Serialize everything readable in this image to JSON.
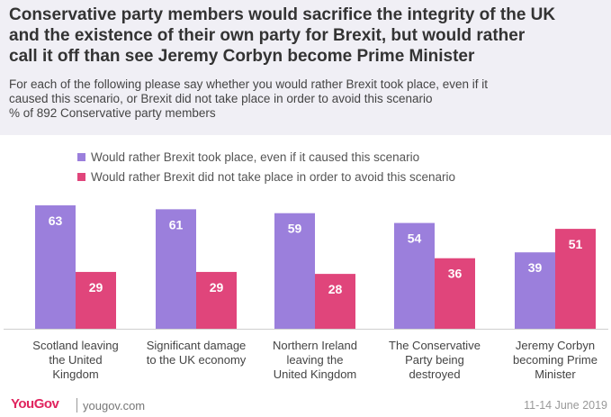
{
  "header": {
    "title_lines": [
      "Conservative party members would sacrifice the integrity of the UK",
      "and the existence of their own party for Brexit, but would rather",
      "call it off than see Jeremy Corbyn become Prime Minister"
    ],
    "subtitle_lines": [
      "For each of the following please say whether you would rather Brexit took place, even if it",
      "caused this scenario, or Brexit did not take place in order to avoid this scenario",
      "% of 892 Conservative party members"
    ]
  },
  "chart_data": {
    "type": "bar",
    "categories": [
      "Scotland leaving the United Kingdom",
      "Significant damage to the UK economy",
      "Northern Ireland leaving the United Kingdom",
      "The Conservative Party being destroyed",
      "Jeremy Corbyn becoming Prime Minister"
    ],
    "category_lines": [
      [
        "Scotland leaving",
        "the United",
        "Kingdom"
      ],
      [
        "Significant damage",
        "to the UK economy"
      ],
      [
        "Northern Ireland",
        "leaving the",
        "United Kingdom"
      ],
      [
        "The Conservative",
        "Party being",
        "destroyed"
      ],
      [
        "Jeremy Corbyn",
        "becoming Prime",
        "Minister"
      ]
    ],
    "series": [
      {
        "name": "Would rather Brexit took place, even if it caused this scenario",
        "color": "#9b7fdc",
        "values": [
          63,
          61,
          59,
          54,
          39
        ]
      },
      {
        "name": "Would rather Brexit did not take place in order to avoid this scenario",
        "color": "#e0457b",
        "values": [
          29,
          29,
          28,
          36,
          51
        ]
      }
    ],
    "ylim": [
      0,
      63
    ],
    "data_labels": true,
    "grid": false,
    "legend_position": "top-left"
  },
  "footer": {
    "logo": "YouGov",
    "site": "yougov.com",
    "date": "11-14 June 2019"
  }
}
